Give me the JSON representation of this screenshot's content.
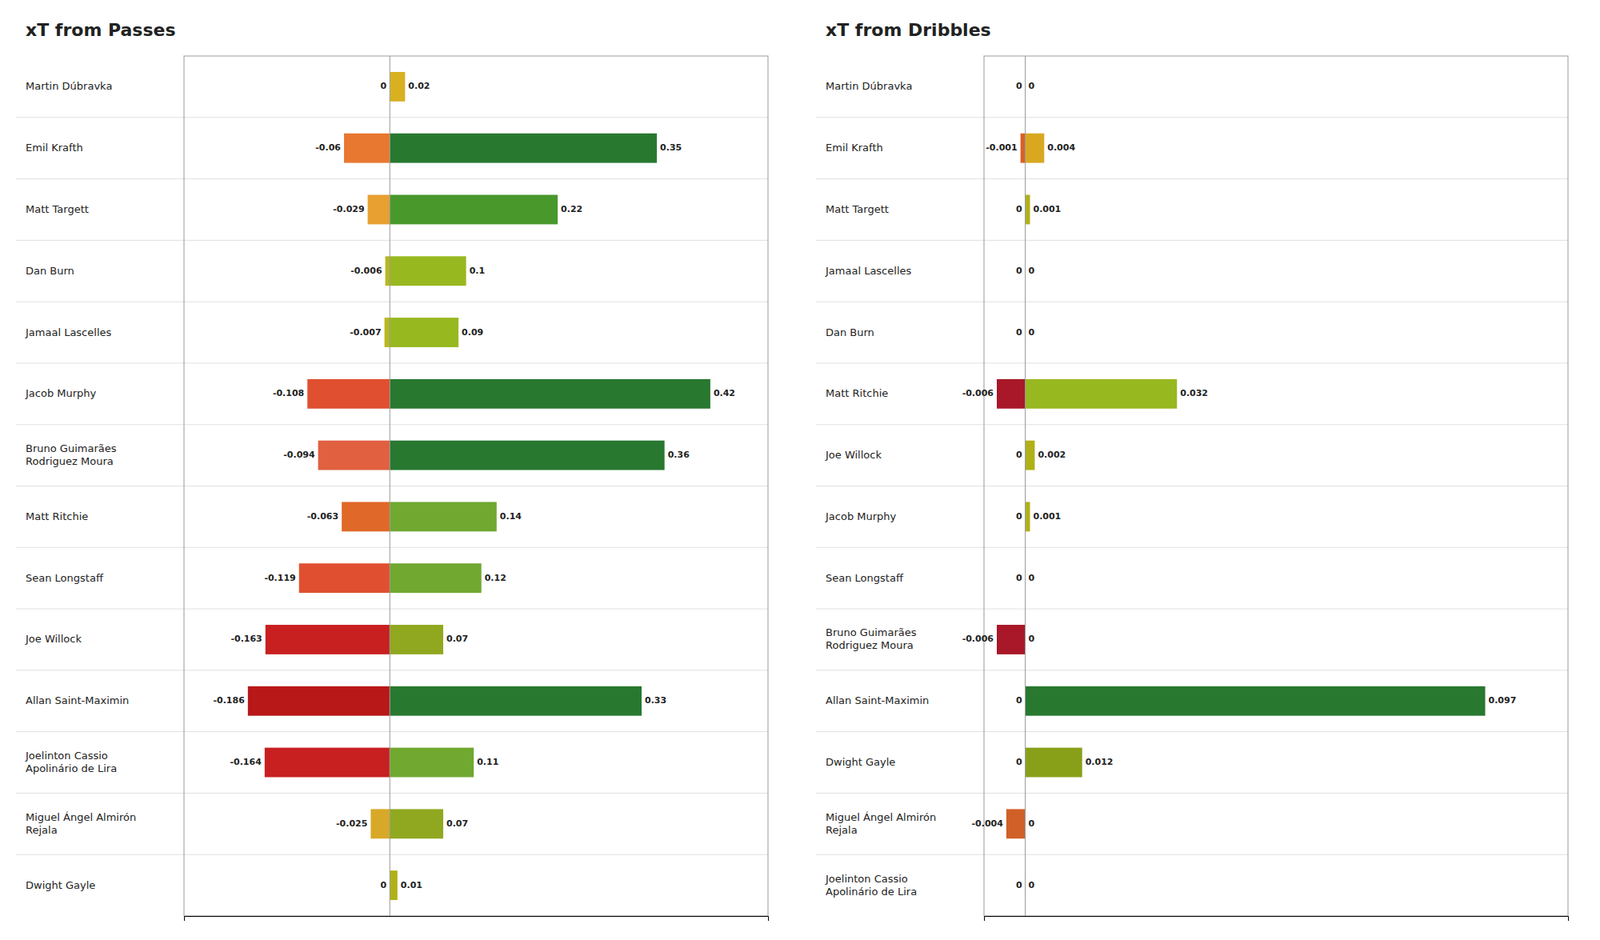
{
  "chart_data": [
    {
      "type": "bar",
      "title": "xT from Passes",
      "orientation": "horizontal",
      "data_labels": true,
      "tick_labels": "y",
      "grid": false,
      "categories": [
        "Martin Dúbravka",
        "Emil Krafth",
        "Matt Targett",
        "Dan Burn",
        "Jamaal Lascelles",
        "Jacob Murphy",
        "Bruno Guimarães\nRodriguez Moura",
        "Matt Ritchie",
        "Sean Longstaff",
        "Joe Willock",
        "Allan Saint-Maximin",
        "Joelinton Cassio\nApolinário de Lira",
        "Miguel Ángel Almirón\nRejala",
        "Dwight Gayle"
      ],
      "series": [
        {
          "values": [
            0,
            -0.06,
            -0.029,
            -0.006,
            -0.007,
            -0.108,
            -0.094,
            -0.063,
            -0.119,
            -0.163,
            -0.186,
            -0.164,
            -0.025,
            0
          ],
          "colors": [
            "#e8c020",
            "#e87830",
            "#e8a030",
            "#b8b820",
            "#b8b820",
            "#e05030",
            "#e06040",
            "#e06828",
            "#e05030",
            "#c82020",
            "#b81818",
            "#c82020",
            "#d8a828",
            "#e8c020"
          ]
        },
        {
          "values": [
            0.02,
            0.35,
            0.22,
            0.1,
            0.09,
            0.42,
            0.36,
            0.14,
            0.12,
            0.07,
            0.33,
            0.11,
            0.07,
            0.01
          ],
          "colors": [
            "#d8b020",
            "#287830",
            "#48982c",
            "#98b820",
            "#98b820",
            "#287830",
            "#287830",
            "#70a830",
            "#70a830",
            "#90a820",
            "#287830",
            "#70a830",
            "#90a820",
            "#b0b018"
          ]
        }
      ],
      "xlim": [
        -0.2697,
        0.4956
      ],
      "xticks": []
    },
    {
      "type": "bar",
      "title": "xT from Dribbles",
      "orientation": "horizontal",
      "data_labels": true,
      "tick_labels": "y",
      "grid": false,
      "categories": [
        "Martin Dúbravka",
        "Emil Krafth",
        "Matt Targett",
        "Jamaal Lascelles",
        "Dan Burn",
        "Matt Ritchie",
        "Joe Willock",
        "Jacob Murphy",
        "Sean Longstaff",
        "Bruno Guimarães\nRodriguez Moura",
        "Allan Saint-Maximin",
        "Dwight Gayle",
        "Miguel Ángel Almirón\nRejala",
        "Joelinton Cassio\nApolinário de Lira"
      ],
      "series": [
        {
          "values": [
            0,
            -0.001,
            0,
            0,
            0,
            -0.006,
            0,
            0,
            0,
            -0.006,
            0,
            0,
            -0.004,
            0
          ],
          "colors": [
            "#e8c020",
            "#d86028",
            "#e8c020",
            "#e8c020",
            "#e8c020",
            "#a81828",
            "#e8c020",
            "#e8c020",
            "#e8c020",
            "#a81828",
            "#e8c020",
            "#e8c020",
            "#d06028",
            "#e8c020"
          ]
        },
        {
          "values": [
            0,
            0.004,
            0.001,
            0,
            0,
            0.032,
            0.002,
            0.001,
            0,
            0,
            0.097,
            0.012,
            0,
            0
          ],
          "colors": [
            "#e8c020",
            "#d8a820",
            "#b0b018",
            "#e8c020",
            "#e8c020",
            "#98b820",
            "#b0b018",
            "#b0b018",
            "#e8c020",
            "#e8c020",
            "#287830",
            "#88a018",
            "#e8c020",
            "#e8c020"
          ]
        }
      ],
      "xlim": [
        -0.0087,
        0.11446
      ],
      "xticks": []
    }
  ]
}
